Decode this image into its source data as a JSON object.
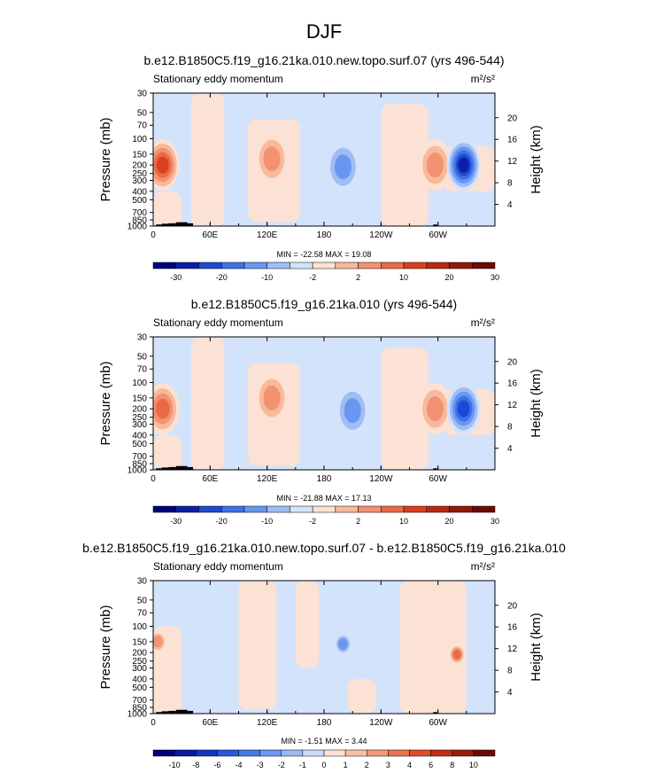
{
  "figure_title": "DJF",
  "chart_data": [
    {
      "type": "heatmap",
      "title": "b.e12.B1850C5.f19_g16.21ka.010.new.topo.surf.07 (yrs 496-544)",
      "left_label": "Stationary eddy momentum",
      "units": "m²/s²",
      "ylabel": "Pressure (mb)",
      "ylabel_right": "Height (km)",
      "x_ticks": [
        "0",
        "60E",
        "120E",
        "180",
        "120W",
        "60W"
      ],
      "y_ticks": [
        "30",
        "50",
        "70",
        "100",
        "150",
        "200",
        "250",
        "300",
        "400",
        "500",
        "700",
        "850",
        "1000"
      ],
      "y_ticks_right": [
        "20",
        "16",
        "12",
        "8",
        "4"
      ],
      "stats": "MIN = -22.58  MAX =  19.08",
      "min": -22.58,
      "max": 19.08,
      "colorbar_levels": [
        "-30",
        "-20",
        "-10",
        "-2",
        "2",
        "10",
        "20",
        "30"
      ],
      "features": [
        {
          "lon": 10,
          "p": 200,
          "value": 19,
          "sign": "positive"
        },
        {
          "lon": 125,
          "p": 170,
          "value": 10,
          "sign": "positive"
        },
        {
          "lon": 200,
          "p": 210,
          "value": -12,
          "sign": "negative"
        },
        {
          "lon": 297,
          "p": 200,
          "value": 12,
          "sign": "positive"
        },
        {
          "lon": 327,
          "p": 200,
          "value": -22.58,
          "sign": "negative"
        }
      ]
    },
    {
      "type": "heatmap",
      "title": "b.e12.B1850C5.f19_g16.21ka.010 (yrs 496-544)",
      "left_label": "Stationary eddy momentum",
      "units": "m²/s²",
      "ylabel": "Pressure (mb)",
      "ylabel_right": "Height (km)",
      "x_ticks": [
        "0",
        "60E",
        "120E",
        "180",
        "120W",
        "60W"
      ],
      "y_ticks": [
        "30",
        "50",
        "70",
        "100",
        "150",
        "200",
        "250",
        "300",
        "400",
        "500",
        "700",
        "850",
        "1000"
      ],
      "y_ticks_right": [
        "20",
        "16",
        "12",
        "8",
        "4"
      ],
      "stats": "MIN = -21.88  MAX =  17.13",
      "min": -21.88,
      "max": 17.13,
      "colorbar_levels": [
        "-30",
        "-20",
        "-10",
        "-2",
        "2",
        "10",
        "20",
        "30"
      ],
      "features": [
        {
          "lon": 10,
          "p": 200,
          "value": 17,
          "sign": "positive"
        },
        {
          "lon": 125,
          "p": 150,
          "value": 10,
          "sign": "positive"
        },
        {
          "lon": 210,
          "p": 210,
          "value": -10,
          "sign": "negative"
        },
        {
          "lon": 297,
          "p": 200,
          "value": 12,
          "sign": "positive"
        },
        {
          "lon": 327,
          "p": 200,
          "value": -21.88,
          "sign": "negative"
        }
      ]
    },
    {
      "type": "heatmap",
      "title": "b.e12.B1850C5.f19_g16.21ka.010.new.topo.surf.07 - b.e12.B1850C5.f19_g16.21ka.010",
      "left_label": "Stationary eddy momentum",
      "units": "m²/s²",
      "ylabel": "Pressure (mb)",
      "ylabel_right": "Height (km)",
      "x_ticks": [
        "0",
        "60E",
        "120E",
        "180",
        "120W",
        "60W"
      ],
      "y_ticks": [
        "30",
        "50",
        "70",
        "100",
        "150",
        "200",
        "250",
        "300",
        "400",
        "500",
        "700",
        "850",
        "1000"
      ],
      "y_ticks_right": [
        "20",
        "16",
        "12",
        "8",
        "4"
      ],
      "stats": "MIN = -1.51  MAX =  3.44",
      "min": -1.51,
      "max": 3.44,
      "colorbar_levels": [
        "-10",
        "-8",
        "-6",
        "-4",
        "-3",
        "-2",
        "-1",
        "0",
        "1",
        "2",
        "3",
        "4",
        "6",
        "8",
        "10"
      ],
      "features": [
        {
          "lon": 5,
          "p": 150,
          "value": 2,
          "sign": "positive"
        },
        {
          "lon": 320,
          "p": 210,
          "value": 3.44,
          "sign": "positive"
        },
        {
          "lon": 200,
          "p": 160,
          "value": -1.51,
          "sign": "negative"
        }
      ]
    }
  ],
  "colors": {
    "colorbar_main": [
      "#00007f",
      "#0a1fa8",
      "#1f49d2",
      "#3c73e8",
      "#6997f0",
      "#9fbdf5",
      "#d3e3fb",
      "#fde1d3",
      "#f8b99c",
      "#f29270",
      "#eb6a45",
      "#d8411e",
      "#b82810",
      "#911908",
      "#6b0b03"
    ],
    "colorbar_diff": [
      "#00007f",
      "#081a9e",
      "#1238c0",
      "#2558dc",
      "#4479e9",
      "#6e98f0",
      "#9bb9f5",
      "#cbdcfb",
      "#fde1d3",
      "#f8c0a3",
      "#f29a78",
      "#eb744e",
      "#de4e28",
      "#c12e14",
      "#9c1b09",
      "#6b0b03"
    ],
    "land": "#000000"
  }
}
